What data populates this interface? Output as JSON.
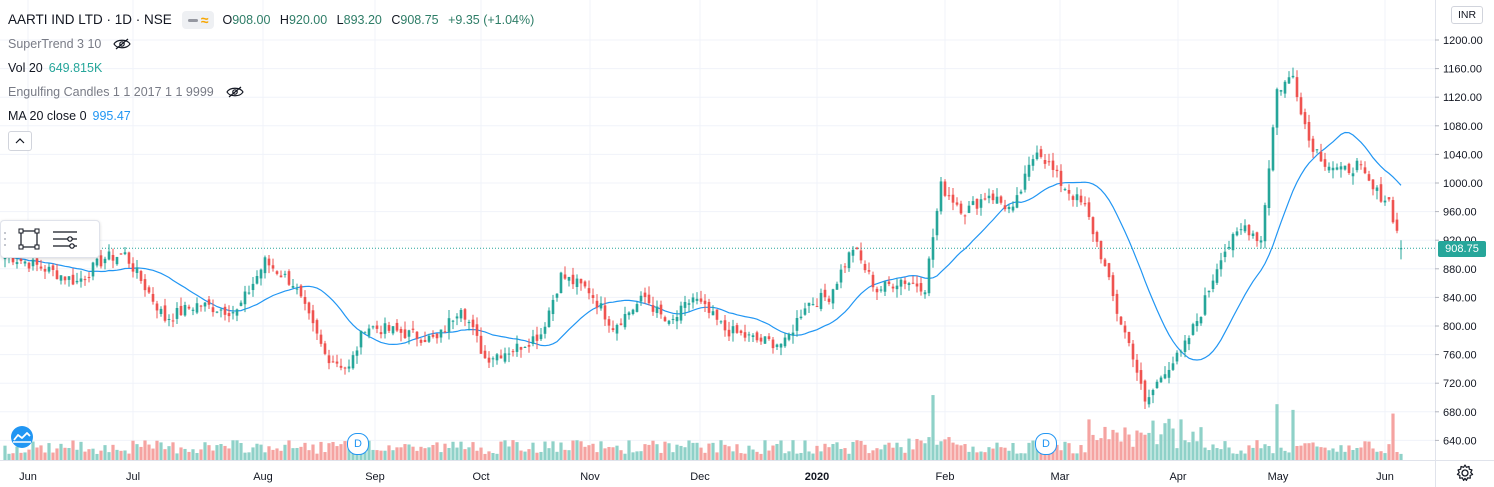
{
  "symbol": {
    "title": "AARTI IND LTD · 1D · NSE",
    "ohlc": {
      "o_label": "O",
      "o": "908.00",
      "h_label": "H",
      "h": "920.00",
      "l_label": "L",
      "l": "893.20",
      "c_label": "C",
      "c": "908.75",
      "change": "+9.35 (+1.04%)"
    }
  },
  "indicators": [
    {
      "name": "SuperTrend 3 10",
      "value": "",
      "hidden": true
    },
    {
      "name": "Vol 20",
      "value": "649.815K",
      "hidden": false
    },
    {
      "name": "Engulfing Candles 1 1 2017 1 1 9999",
      "value": "",
      "hidden": true
    },
    {
      "name": "MA 20 close 0",
      "value": "995.47",
      "hidden": false
    }
  ],
  "currency": "INR",
  "last_price_label": "908.75",
  "colors": {
    "up": "#26a69a",
    "down": "#ef5350",
    "ma": "#2196f3",
    "vol_up": "#8fd1c8",
    "vol_down": "#f5a3a1",
    "grid": "#f0f3fa",
    "price_line": "#26a69a"
  },
  "dividend_marker": "D",
  "icons": {
    "hide_eye": "eye-crossed-icon",
    "collapse": "chevron-up-icon",
    "settings": "gear-icon",
    "logo": "tradingview-logo-icon",
    "rect": "rectangle-tool-icon",
    "settings_lines": "lines-settings-icon"
  },
  "chart_data": {
    "type": "candlestick",
    "y_ticks": [
      "1200.00",
      "1160.00",
      "1120.00",
      "1080.00",
      "1040.00",
      "1000.00",
      "960.00",
      "920.00",
      "880.00",
      "840.00",
      "800.00",
      "760.00",
      "720.00",
      "680.00",
      "640.00"
    ],
    "ylim": [
      610,
      1230
    ],
    "x_ticks": [
      {
        "label": "Jun",
        "bold": false
      },
      {
        "label": "Jul",
        "bold": false
      },
      {
        "label": "Aug",
        "bold": false
      },
      {
        "label": "Sep",
        "bold": false
      },
      {
        "label": "Oct",
        "bold": false
      },
      {
        "label": "Nov",
        "bold": false
      },
      {
        "label": "Dec",
        "bold": false
      },
      {
        "label": "2020",
        "bold": true
      },
      {
        "label": "Feb",
        "bold": false
      },
      {
        "label": "Mar",
        "bold": false
      },
      {
        "label": "Apr",
        "bold": false
      },
      {
        "label": "May",
        "bold": false
      },
      {
        "label": "Jun",
        "bold": false
      }
    ],
    "last_close": 908.75,
    "anchors": [
      {
        "d": 0,
        "c": 900
      },
      {
        "d": 10,
        "c": 880
      },
      {
        "d": 18,
        "c": 862
      },
      {
        "d": 25,
        "c": 895
      },
      {
        "d": 30,
        "c": 900
      },
      {
        "d": 40,
        "c": 810
      },
      {
        "d": 48,
        "c": 830
      },
      {
        "d": 58,
        "c": 820
      },
      {
        "d": 65,
        "c": 890
      },
      {
        "d": 72,
        "c": 860
      },
      {
        "d": 80,
        "c": 760
      },
      {
        "d": 86,
        "c": 740
      },
      {
        "d": 90,
        "c": 800
      },
      {
        "d": 100,
        "c": 790
      },
      {
        "d": 108,
        "c": 780
      },
      {
        "d": 114,
        "c": 830
      },
      {
        "d": 120,
        "c": 755
      },
      {
        "d": 128,
        "c": 770
      },
      {
        "d": 134,
        "c": 790
      },
      {
        "d": 139,
        "c": 870
      },
      {
        "d": 146,
        "c": 850
      },
      {
        "d": 152,
        "c": 800
      },
      {
        "d": 160,
        "c": 840
      },
      {
        "d": 166,
        "c": 800
      },
      {
        "d": 172,
        "c": 840
      },
      {
        "d": 180,
        "c": 795
      },
      {
        "d": 188,
        "c": 780
      },
      {
        "d": 195,
        "c": 775
      },
      {
        "d": 200,
        "c": 830
      },
      {
        "d": 206,
        "c": 842
      },
      {
        "d": 212,
        "c": 910
      },
      {
        "d": 218,
        "c": 850
      },
      {
        "d": 224,
        "c": 865
      },
      {
        "d": 230,
        "c": 855
      },
      {
        "d": 234,
        "c": 995
      },
      {
        "d": 240,
        "c": 960
      },
      {
        "d": 246,
        "c": 985
      },
      {
        "d": 252,
        "c": 960
      },
      {
        "d": 258,
        "c": 1050
      },
      {
        "d": 264,
        "c": 1000
      },
      {
        "d": 270,
        "c": 965
      },
      {
        "d": 274,
        "c": 900
      },
      {
        "d": 278,
        "c": 820
      },
      {
        "d": 282,
        "c": 760
      },
      {
        "d": 285,
        "c": 690
      },
      {
        "d": 290,
        "c": 740
      },
      {
        "d": 294,
        "c": 760
      },
      {
        "d": 299,
        "c": 820
      },
      {
        "d": 304,
        "c": 900
      },
      {
        "d": 310,
        "c": 940
      },
      {
        "d": 314,
        "c": 920
      },
      {
        "d": 318,
        "c": 1130
      },
      {
        "d": 322,
        "c": 1150
      },
      {
        "d": 326,
        "c": 1060
      },
      {
        "d": 330,
        "c": 1030
      },
      {
        "d": 334,
        "c": 1015
      },
      {
        "d": 338,
        "c": 1025
      },
      {
        "d": 342,
        "c": 990
      },
      {
        "d": 346,
        "c": 975
      },
      {
        "d": 349,
        "c": 908.75
      }
    ],
    "dividend_days": [
      88,
      260
    ]
  }
}
